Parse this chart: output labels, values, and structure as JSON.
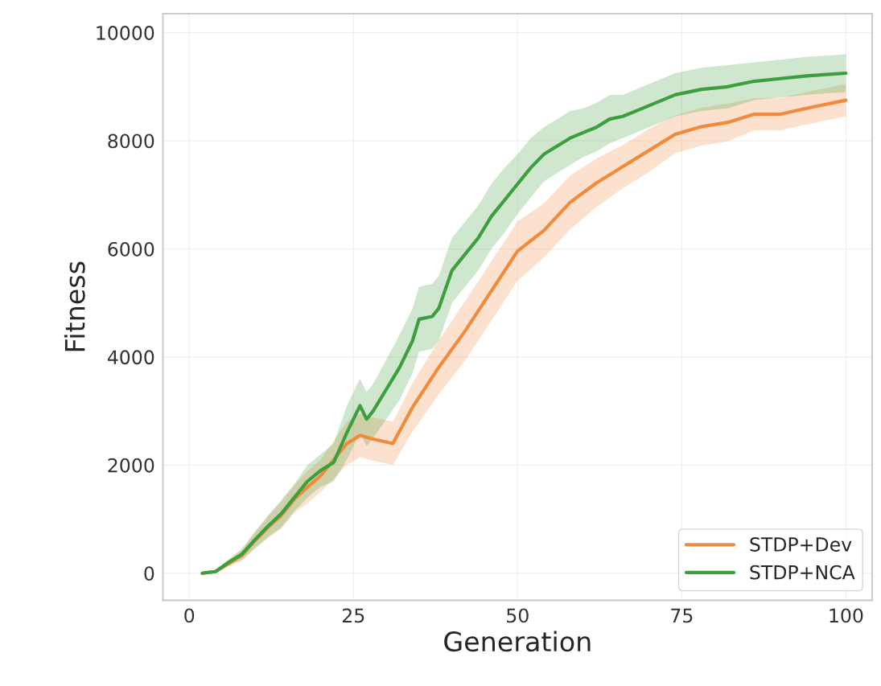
{
  "chart_data": {
    "type": "line",
    "xlabel": "Generation",
    "ylabel": "Fitness",
    "xlim": [
      -4,
      104
    ],
    "ylim": [
      -500,
      10350
    ],
    "xticks": [
      0,
      25,
      50,
      75,
      100
    ],
    "yticks": [
      0,
      2000,
      4000,
      6000,
      8000,
      10000
    ],
    "grid": true,
    "legend": "bottom right",
    "line_style": "solid",
    "marker": "none",
    "series": [
      {
        "name": "STDP+Dev",
        "color": "#f28a3c",
        "x": [
          2,
          4,
          6,
          8,
          10,
          12,
          14,
          16,
          18,
          20,
          22,
          24,
          26,
          28,
          31,
          34,
          38,
          42,
          46,
          50,
          54,
          58,
          62,
          66,
          70,
          74,
          78,
          82,
          86,
          90,
          94,
          100
        ],
        "values": [
          0,
          30,
          180,
          330,
          600,
          850,
          1070,
          1370,
          1590,
          1800,
          2100,
          2400,
          2550,
          2480,
          2400,
          3070,
          3810,
          4480,
          5220,
          5960,
          6340,
          6860,
          7220,
          7520,
          7820,
          8120,
          8260,
          8340,
          8490,
          8490,
          8600,
          8750
        ],
        "lower": [
          0,
          10,
          120,
          230,
          450,
          650,
          820,
          1120,
          1290,
          1500,
          1750,
          2000,
          2150,
          2080,
          2000,
          2620,
          3310,
          3930,
          4670,
          5410,
          5840,
          6360,
          6770,
          7120,
          7420,
          7770,
          7910,
          7990,
          8190,
          8190,
          8300,
          8450
        ],
        "upper": [
          0,
          50,
          240,
          430,
          750,
          1050,
          1320,
          1620,
          1890,
          2100,
          2450,
          2800,
          2950,
          2880,
          2800,
          3520,
          4310,
          5030,
          5770,
          6510,
          6840,
          7360,
          7670,
          7920,
          8220,
          8470,
          8610,
          8690,
          8790,
          8790,
          8900,
          9050
        ]
      },
      {
        "name": "STDP+NCA",
        "color": "#3c9e3c",
        "x": [
          2,
          4,
          6,
          8,
          10,
          12,
          14,
          16,
          18,
          20,
          22,
          24,
          25,
          26,
          27,
          28,
          30,
          32,
          34,
          35,
          37,
          38,
          40,
          42,
          44,
          46,
          48,
          50,
          52,
          54,
          56,
          58,
          60,
          62,
          64,
          66,
          68,
          70,
          72,
          74,
          78,
          82,
          86,
          90,
          94,
          100
        ],
        "values": [
          0,
          30,
          200,
          350,
          620,
          870,
          1100,
          1400,
          1700,
          1900,
          2050,
          2600,
          2850,
          3100,
          2850,
          3000,
          3400,
          3800,
          4300,
          4700,
          4750,
          4900,
          5600,
          5900,
          6200,
          6600,
          6900,
          7200,
          7500,
          7750,
          7900,
          8050,
          8150,
          8250,
          8400,
          8450,
          8550,
          8650,
          8750,
          8850,
          8950,
          9000,
          9100,
          9150,
          9200,
          9250
        ],
        "lower": [
          0,
          10,
          140,
          250,
          470,
          670,
          850,
          1150,
          1400,
          1600,
          1700,
          2100,
          2350,
          2600,
          2350,
          2500,
          2850,
          3200,
          3700,
          4100,
          4150,
          4300,
          5000,
          5300,
          5600,
          6000,
          6300,
          6650,
          6950,
          7250,
          7400,
          7550,
          7700,
          7800,
          7950,
          8050,
          8150,
          8250,
          8350,
          8450,
          8550,
          8600,
          8750,
          8800,
          8850,
          8900
        ],
        "upper": [
          0,
          50,
          260,
          450,
          770,
          1070,
          1350,
          1650,
          2000,
          2200,
          2400,
          3100,
          3350,
          3600,
          3350,
          3500,
          3950,
          4400,
          4900,
          5300,
          5350,
          5500,
          6200,
          6500,
          6800,
          7200,
          7500,
          7750,
          8050,
          8250,
          8400,
          8550,
          8600,
          8700,
          8850,
          8850,
          8950,
          9050,
          9150,
          9250,
          9350,
          9400,
          9450,
          9500,
          9550,
          9600
        ]
      }
    ]
  }
}
